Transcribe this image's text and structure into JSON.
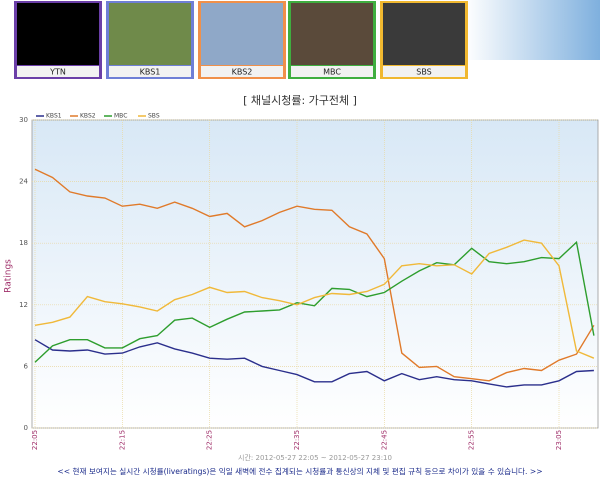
{
  "channels": [
    {
      "name": "YTN",
      "color": "#6b3fa8"
    },
    {
      "name": "KBS1",
      "color": "#6f7fd6"
    },
    {
      "name": "KBS2",
      "color": "#f0904a"
    },
    {
      "name": "MBC",
      "color": "#3fae3f"
    },
    {
      "name": "SBS",
      "color": "#f0b830"
    }
  ],
  "chart_data": {
    "type": "line",
    "title": "[ 채널시청률: 가구전체 ]",
    "y_label": "Ratings",
    "x_label": "시간: 2012-05-27 22:05 ~ 2012-05-27 23:10",
    "categories": [
      "22:05",
      null,
      null,
      null,
      null,
      "22:15",
      null,
      null,
      null,
      null,
      "22:25",
      null,
      null,
      null,
      null,
      "22:35",
      null,
      null,
      null,
      null,
      "22:45",
      null,
      null,
      null,
      null,
      "22:55",
      null,
      null,
      null,
      null,
      "23:05",
      null,
      null
    ],
    "series": [
      {
        "name": "KBS1",
        "color": "#2b2f8c",
        "values": [
          8.6,
          7.6,
          7.5,
          7.6,
          7.2,
          7.3,
          7.9,
          8.3,
          7.7,
          7.3,
          6.8,
          6.7,
          6.8,
          6.0,
          5.6,
          5.2,
          4.5,
          4.5,
          5.3,
          5.5,
          4.6,
          5.3,
          4.7,
          5.0,
          4.7,
          4.6,
          4.3,
          4.0,
          4.2,
          4.2,
          4.6,
          5.5,
          5.6
        ]
      },
      {
        "name": "KBS2",
        "color": "#e07a2a",
        "values": [
          25.2,
          24.4,
          23.0,
          22.6,
          22.4,
          21.6,
          21.8,
          21.4,
          22.0,
          21.4,
          20.6,
          20.9,
          19.6,
          20.2,
          21.0,
          21.6,
          21.3,
          21.2,
          19.6,
          18.9,
          16.5,
          7.3,
          5.9,
          6.0,
          5.0,
          4.8,
          4.6,
          5.4,
          5.8,
          5.6,
          6.6,
          7.2,
          10.0
        ]
      },
      {
        "name": "MBC",
        "color": "#2e9e2e",
        "values": [
          6.4,
          8.0,
          8.6,
          8.6,
          7.8,
          7.8,
          8.7,
          9.0,
          10.5,
          10.7,
          9.8,
          10.6,
          11.3,
          11.4,
          11.5,
          12.2,
          11.9,
          13.6,
          13.5,
          12.8,
          13.2,
          14.3,
          15.3,
          16.1,
          15.9,
          17.5,
          16.2,
          16.0,
          16.2,
          16.6,
          16.5,
          18.1,
          9.0
        ]
      },
      {
        "name": "SBS",
        "color": "#f0b93a",
        "values": [
          10.0,
          10.3,
          10.8,
          12.8,
          12.3,
          12.1,
          11.8,
          11.4,
          12.5,
          13.0,
          13.7,
          13.2,
          13.3,
          12.7,
          12.4,
          12.0,
          12.7,
          13.1,
          13.0,
          13.3,
          14.0,
          15.8,
          16.0,
          15.8,
          15.9,
          15.0,
          17.0,
          17.6,
          18.3,
          18.0,
          15.8,
          7.5,
          6.8
        ]
      }
    ],
    "ylim": [
      0,
      30
    ],
    "yticks": [
      0,
      6,
      12,
      18,
      24,
      30
    ],
    "grid": true,
    "legend": "top-left"
  },
  "footer": "<< 현재 보여지는 실시간 시청률(liveratings)은 익일 새벽에 전수 집계되는 시청률과 통신상의 지체 및 편집 규칙 등으로 차이가 있을 수 있습니다. >>"
}
